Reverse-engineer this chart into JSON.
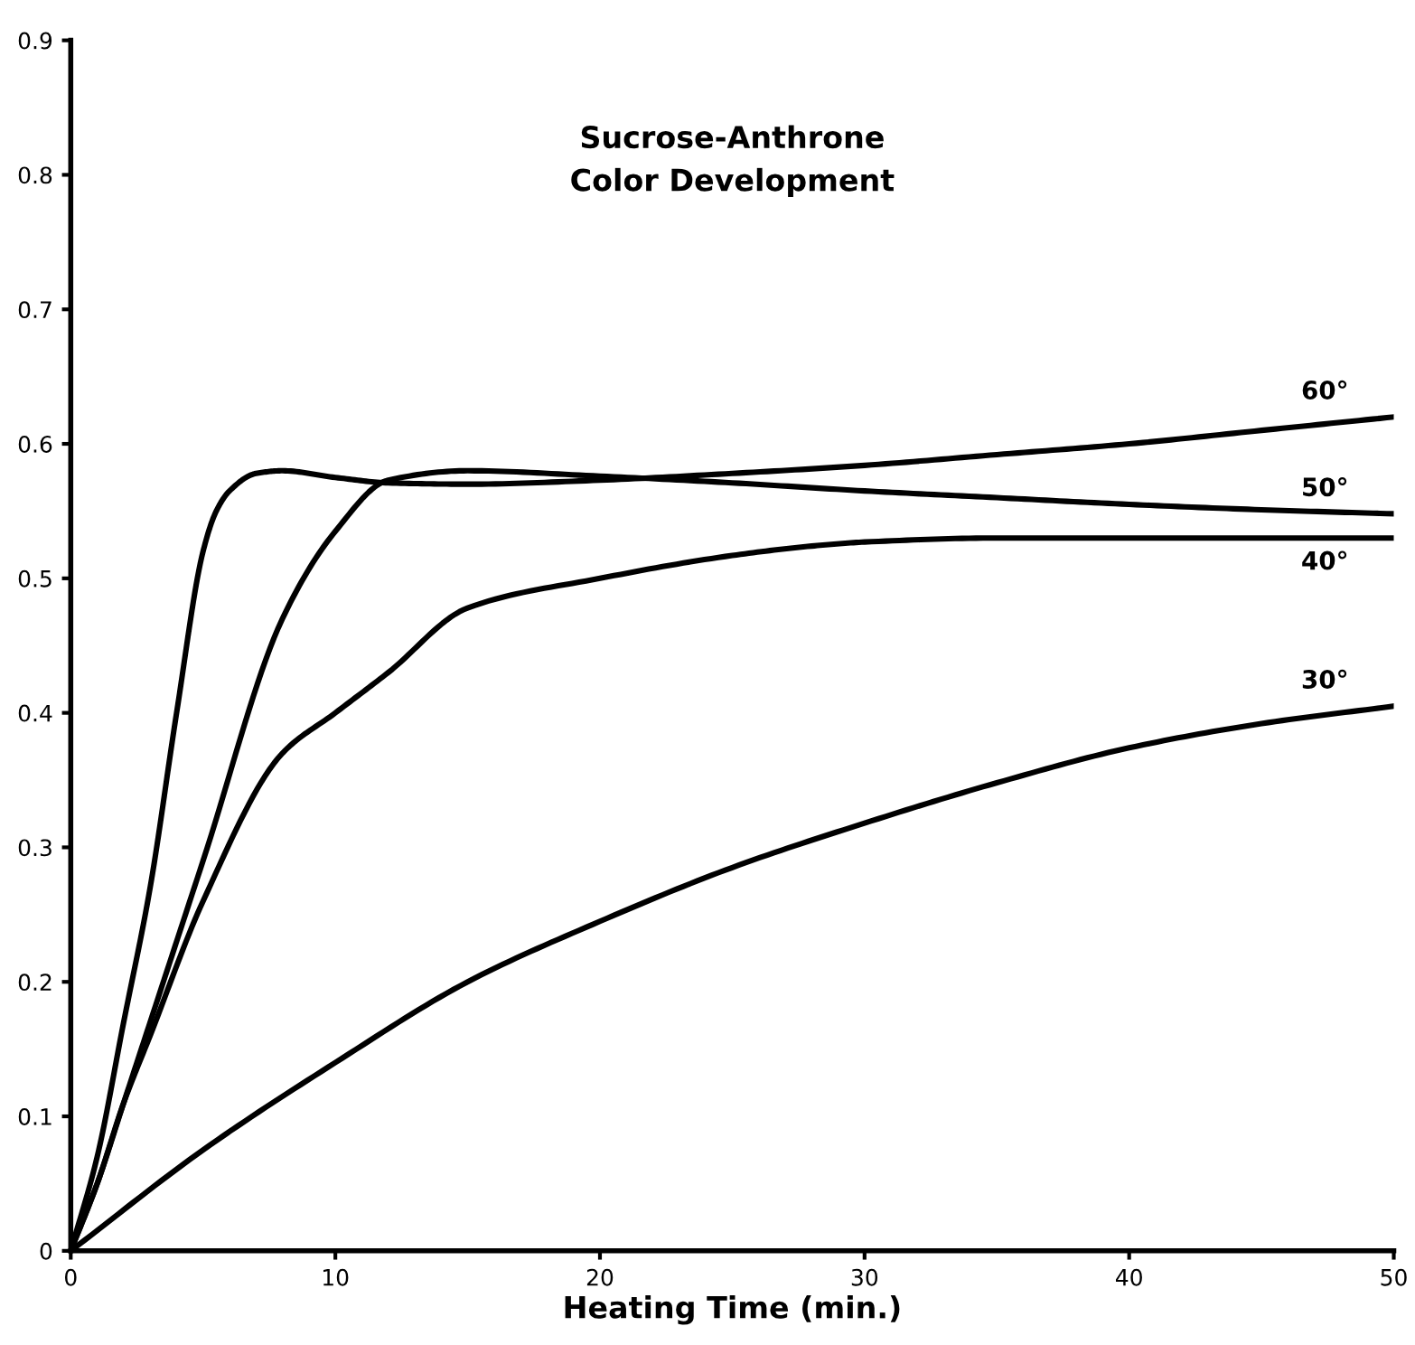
{
  "chart_data": {
    "type": "line",
    "title": "Sucrose-Anthrone\nColor Development",
    "xlabel": "Heating Time (min.)",
    "xlim": [
      0,
      50
    ],
    "xticks": [
      0,
      10,
      20,
      30,
      40,
      50
    ],
    "ylim": [
      0,
      0.9
    ],
    "yticks": [
      {
        "value": 0,
        "label": "0"
      },
      0.1,
      0.2,
      0.3,
      0.4,
      0.5,
      0.6,
      0.7,
      0.8,
      0.9
    ],
    "grid": false,
    "legend": false,
    "marker": "none",
    "line_style": "solid",
    "series": [
      {
        "name": "60°",
        "color": "#000000",
        "x": [
          0,
          1,
          2,
          3,
          4,
          5,
          5.5,
          6,
          7,
          8,
          10,
          12,
          15,
          20,
          25,
          30,
          35,
          40,
          45,
          50
        ],
        "values": [
          0,
          0.07,
          0.17,
          0.27,
          0.4,
          0.52,
          0.55,
          0.565,
          0.578,
          0.58,
          0.575,
          0.571,
          0.57,
          0.573,
          0.578,
          0.584,
          0.592,
          0.6,
          0.61,
          0.62
        ]
      },
      {
        "name": "50°",
        "color": "#000000",
        "x": [
          0,
          1,
          2,
          3,
          5,
          8,
          10,
          12,
          15,
          20,
          25,
          30,
          35,
          40,
          45,
          50
        ],
        "values": [
          0,
          0.05,
          0.11,
          0.17,
          0.29,
          0.47,
          0.535,
          0.573,
          0.58,
          0.576,
          0.571,
          0.565,
          0.56,
          0.555,
          0.551,
          0.548
        ]
      },
      {
        "name": "40°",
        "color": "#000000",
        "x": [
          0,
          1,
          2,
          3,
          5,
          8,
          10,
          12,
          15,
          20,
          25,
          28,
          30,
          35,
          40,
          45,
          50
        ],
        "values": [
          0,
          0.05,
          0.11,
          0.16,
          0.26,
          0.37,
          0.4,
          0.43,
          0.478,
          0.5,
          0.517,
          0.524,
          0.527,
          0.53,
          0.53,
          0.53,
          0.53
        ]
      },
      {
        "name": "30°",
        "color": "#000000",
        "x": [
          0,
          5,
          10,
          15,
          20,
          25,
          30,
          35,
          40,
          45,
          50
        ],
        "values": [
          0,
          0.075,
          0.14,
          0.2,
          0.245,
          0.285,
          0.318,
          0.348,
          0.374,
          0.392,
          0.405
        ]
      }
    ]
  }
}
